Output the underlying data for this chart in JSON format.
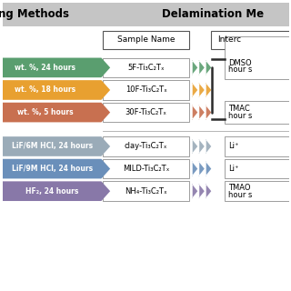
{
  "title_left": "ng Methods",
  "title_right": "Delamination Me",
  "header_sample": "Sample Name",
  "header_intercalant": "Interc",
  "header_bg": "#c8c8c8",
  "rows_top": [
    {
      "arrow_color": "#5a9e6f",
      "arrow_text": "wt. %, 24 hours",
      "sample_name": "5F-Ti₃C₂Tₓ",
      "intercalant_group": 0
    },
    {
      "arrow_color": "#e8a030",
      "arrow_text": "wt. %, 18 hours",
      "sample_name": "10F-Ti₃C₂Tₓ",
      "intercalant_group": 0
    },
    {
      "arrow_color": "#c87050",
      "arrow_text": "wt. %, 5 hours",
      "sample_name": "30F-Ti₃C₂Tₓ",
      "intercalant_group": 0
    }
  ],
  "rows_bot": [
    {
      "arrow_color": "#9aabb8",
      "arrow_text": "LiF/6M HCl, 24 hours",
      "sample_name": "clay-Ti₃C₂Tₓ",
      "intercalant": "Li⁺"
    },
    {
      "arrow_color": "#6a8fba",
      "arrow_text": "LiF/9M HCl, 24 hours",
      "sample_name": "MILD-Ti₃C₂Tₓ",
      "intercalant": "Li⁺"
    },
    {
      "arrow_color": "#8878a8",
      "arrow_text": "HF₂, 24 hours",
      "sample_name": "NH₄-Ti₃C₂Tₓ",
      "intercalant": "TMAO\nhour s"
    }
  ],
  "top_intercalants": [
    {
      "text": "DMSO\nhour s",
      "row": 0
    },
    {
      "text": "TMAC\nhour s",
      "row": 2
    }
  ]
}
